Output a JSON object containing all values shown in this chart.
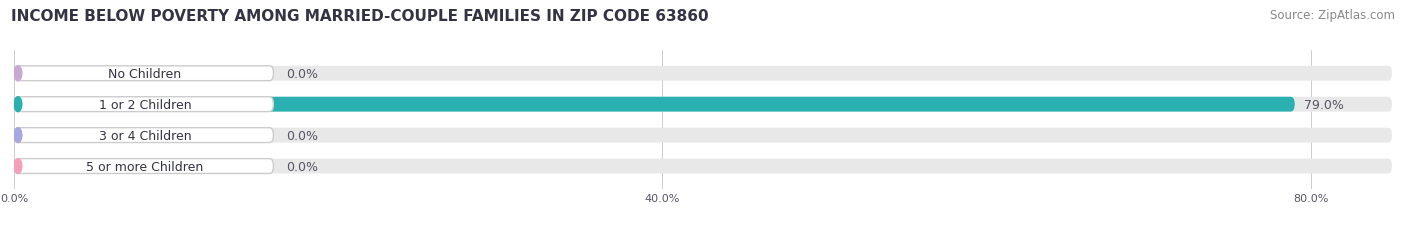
{
  "title": "INCOME BELOW POVERTY AMONG MARRIED-COUPLE FAMILIES IN ZIP CODE 63860",
  "source": "Source: ZipAtlas.com",
  "categories": [
    "No Children",
    "1 or 2 Children",
    "3 or 4 Children",
    "5 or more Children"
  ],
  "values": [
    0.0,
    79.0,
    0.0,
    0.0
  ],
  "bar_colors": [
    "#c9a8d4",
    "#2ab0b0",
    "#a8a8e0",
    "#f4a0bb"
  ],
  "track_color": "#e8e8e8",
  "label_bg_color": "#ffffff",
  "label_border_color": "#dddddd",
  "xlim_max": 85.0,
  "xticks": [
    0.0,
    40.0,
    80.0
  ],
  "xtick_labels": [
    "0.0%",
    "40.0%",
    "80.0%"
  ],
  "title_fontsize": 11,
  "source_fontsize": 8.5,
  "label_fontsize": 9,
  "value_fontsize": 9,
  "bar_height": 0.48,
  "background_color": "#ffffff",
  "text_color": "#555566",
  "label_text_color": "#333344"
}
